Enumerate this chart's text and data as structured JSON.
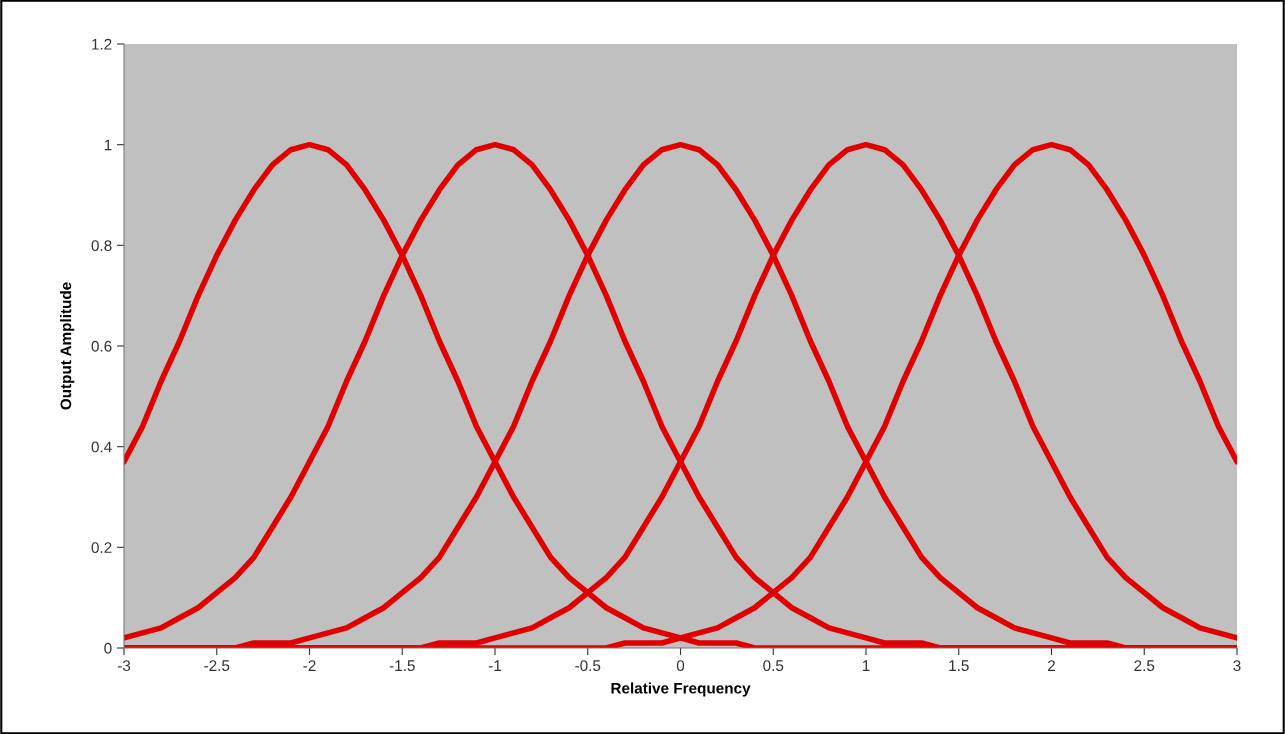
{
  "chart_data": {
    "type": "line",
    "xlabel": "Relative Frequency",
    "ylabel": "Output Amplitude",
    "x": [
      -3,
      -2.9,
      -2.8,
      -2.7,
      -2.6,
      -2.5,
      -2.4,
      -2.3,
      -2.2,
      -2.1,
      -2,
      -1.9,
      -1.8,
      -1.7,
      -1.6,
      -1.5,
      -1.4,
      -1.3,
      -1.2,
      -1.1,
      -1,
      -0.9,
      -0.8,
      -0.7,
      -0.6,
      -0.5,
      -0.4,
      -0.3,
      -0.2,
      -0.1,
      0,
      0.1,
      0.2,
      0.3,
      0.4,
      0.5,
      0.6,
      0.7,
      0.8,
      0.9,
      1,
      1.1,
      1.2,
      1.3,
      1.4,
      1.5,
      1.6,
      1.7,
      1.8,
      1.9,
      2,
      2.1,
      2.2,
      2.3,
      2.4,
      2.5,
      2.6,
      2.7,
      2.8,
      2.9,
      3
    ],
    "series": [
      {
        "color": "#e00000",
        "values": [
          0.37,
          0.44,
          0.53,
          0.61,
          0.7,
          0.78,
          0.85,
          0.91,
          0.96,
          0.99,
          1,
          0.99,
          0.96,
          0.91,
          0.85,
          0.78,
          0.7,
          0.61,
          0.53,
          0.44,
          0.37,
          0.3,
          0.24,
          0.18,
          0.14,
          0.11,
          0.08,
          0.06,
          0.04,
          0.03,
          0.02,
          0.01,
          0.01,
          0.01,
          0,
          0,
          0,
          0,
          0,
          0,
          0,
          0,
          0,
          0,
          0,
          0,
          0,
          0,
          0,
          0,
          0,
          0,
          0,
          0,
          0,
          0,
          0,
          0,
          0,
          0,
          0
        ]
      },
      {
        "color": "#e00000",
        "values": [
          0.02,
          0.03,
          0.04,
          0.06,
          0.08,
          0.11,
          0.14,
          0.18,
          0.24,
          0.3,
          0.37,
          0.44,
          0.53,
          0.61,
          0.7,
          0.78,
          0.85,
          0.91,
          0.96,
          0.99,
          1,
          0.99,
          0.96,
          0.91,
          0.85,
          0.78,
          0.7,
          0.61,
          0.53,
          0.44,
          0.37,
          0.3,
          0.24,
          0.18,
          0.14,
          0.11,
          0.08,
          0.06,
          0.04,
          0.03,
          0.02,
          0.01,
          0.01,
          0.01,
          0,
          0,
          0,
          0,
          0,
          0,
          0,
          0,
          0,
          0,
          0,
          0,
          0,
          0,
          0,
          0,
          0
        ]
      },
      {
        "color": "#e00000",
        "values": [
          0,
          0,
          0,
          0,
          0,
          0,
          0,
          0.01,
          0.01,
          0.01,
          0.02,
          0.03,
          0.04,
          0.06,
          0.08,
          0.11,
          0.14,
          0.18,
          0.24,
          0.3,
          0.37,
          0.44,
          0.53,
          0.61,
          0.7,
          0.78,
          0.85,
          0.91,
          0.96,
          0.99,
          1,
          0.99,
          0.96,
          0.91,
          0.85,
          0.78,
          0.7,
          0.61,
          0.53,
          0.44,
          0.37,
          0.3,
          0.24,
          0.18,
          0.14,
          0.11,
          0.08,
          0.06,
          0.04,
          0.03,
          0.02,
          0.01,
          0.01,
          0.01,
          0,
          0,
          0,
          0,
          0,
          0,
          0
        ]
      },
      {
        "color": "#e00000",
        "values": [
          0,
          0,
          0,
          0,
          0,
          0,
          0,
          0,
          0,
          0,
          0,
          0,
          0,
          0,
          0,
          0,
          0,
          0.01,
          0.01,
          0.01,
          0.02,
          0.03,
          0.04,
          0.06,
          0.08,
          0.11,
          0.14,
          0.18,
          0.24,
          0.3,
          0.37,
          0.44,
          0.53,
          0.61,
          0.7,
          0.78,
          0.85,
          0.91,
          0.96,
          0.99,
          1,
          0.99,
          0.96,
          0.91,
          0.85,
          0.78,
          0.7,
          0.61,
          0.53,
          0.44,
          0.37,
          0.3,
          0.24,
          0.18,
          0.14,
          0.11,
          0.08,
          0.06,
          0.04,
          0.03,
          0.02
        ]
      },
      {
        "color": "#e00000",
        "values": [
          0,
          0,
          0,
          0,
          0,
          0,
          0,
          0,
          0,
          0,
          0,
          0,
          0,
          0,
          0,
          0,
          0,
          0,
          0,
          0,
          0,
          0,
          0,
          0,
          0,
          0,
          0,
          0.01,
          0.01,
          0.01,
          0.02,
          0.03,
          0.04,
          0.06,
          0.08,
          0.11,
          0.14,
          0.18,
          0.24,
          0.3,
          0.37,
          0.44,
          0.53,
          0.61,
          0.7,
          0.78,
          0.85,
          0.91,
          0.96,
          0.99,
          1,
          0.99,
          0.96,
          0.91,
          0.85,
          0.78,
          0.7,
          0.61,
          0.53,
          0.44,
          0.37
        ]
      }
    ],
    "xlim": [
      -3,
      3
    ],
    "xticks": [
      -3,
      -2.5,
      -2,
      -1.5,
      -1,
      -0.5,
      0,
      0.5,
      1,
      1.5,
      2,
      2.5,
      3
    ],
    "ylim": [
      0,
      1.2
    ],
    "yticks": [
      0,
      0.2,
      0.4,
      0.6,
      0.8,
      1,
      1.2
    ],
    "grid": false,
    "marker": "none",
    "line_style": "solid"
  }
}
